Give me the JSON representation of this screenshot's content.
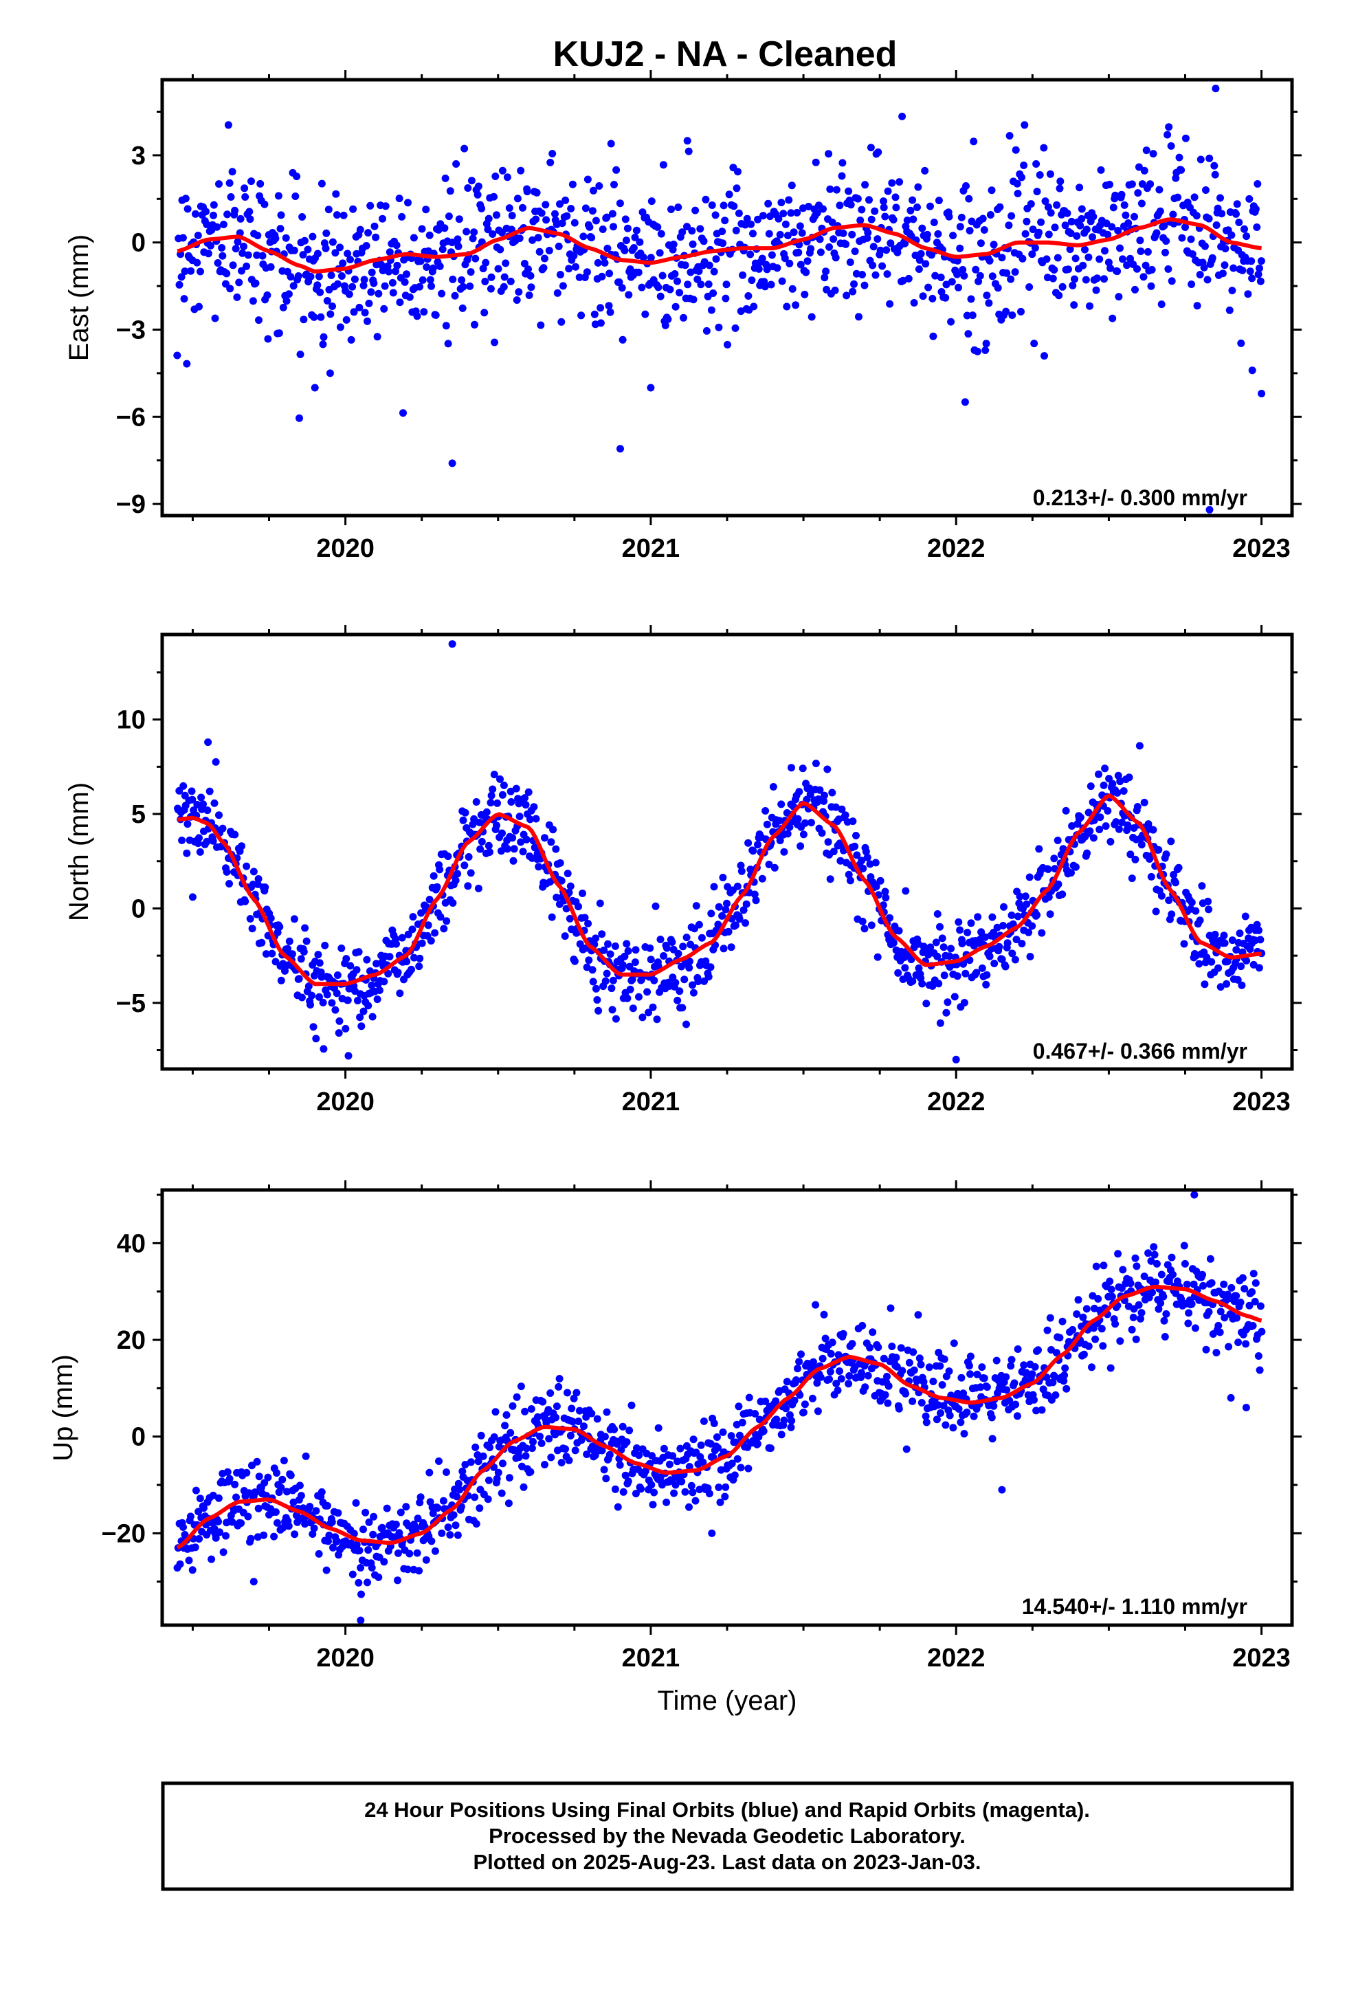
{
  "title": "KUJ2  - NA - Cleaned",
  "xlabel": "Time (year)",
  "footer": {
    "line1": "24 Hour Positions Using Final Orbits (blue) and Rapid Orbits (magenta).",
    "line2": "Processed by the Nevada Geodetic Laboratory.",
    "line3": "Plotted on 2025-Aug-23. Last data on 2023-Jan-03."
  },
  "colors": {
    "data": "#0000ff",
    "fit": "#ff0000",
    "frame": "#000000"
  },
  "chart_data": [
    {
      "type": "scatter",
      "panel": "East",
      "ylabel": "East (mm)",
      "rate_label": "0.213+/- 0.300 mm/yr",
      "xlim": [
        2019.4,
        2023.1
      ],
      "ylim": [
        -9.4,
        5.6
      ],
      "xticks": [
        "2020",
        "2021",
        "2022",
        "2023"
      ],
      "xtick_values": [
        2020,
        2021,
        2022,
        2023
      ],
      "yticks": [
        "3",
        "0",
        "−3",
        "−6",
        "−9"
      ],
      "ytick_values": [
        3,
        0,
        -3,
        -6,
        -9
      ],
      "series": [
        {
          "kind": "fit-line",
          "x": [
            2019.45,
            2019.55,
            2019.65,
            2019.75,
            2019.85,
            2019.9,
            2020.0,
            2020.1,
            2020.2,
            2020.3,
            2020.4,
            2020.5,
            2020.6,
            2020.7,
            2020.8,
            2020.9,
            2021.0,
            2021.1,
            2021.2,
            2021.3,
            2021.4,
            2021.5,
            2021.6,
            2021.7,
            2021.8,
            2021.9,
            2022.0,
            2022.1,
            2022.2,
            2022.3,
            2022.4,
            2022.5,
            2022.6,
            2022.7,
            2022.8,
            2022.9,
            2023.0
          ],
          "y": [
            -0.3,
            0.1,
            0.2,
            -0.3,
            -0.8,
            -1.0,
            -0.9,
            -0.6,
            -0.4,
            -0.5,
            -0.4,
            0.1,
            0.5,
            0.3,
            -0.2,
            -0.6,
            -0.7,
            -0.5,
            -0.3,
            -0.2,
            -0.2,
            0.1,
            0.5,
            0.6,
            0.3,
            -0.2,
            -0.5,
            -0.4,
            0.0,
            0.0,
            -0.1,
            0.1,
            0.5,
            0.8,
            0.6,
            0.0,
            -0.2
          ]
        },
        {
          "kind": "outliers",
          "x": [
            2019.9,
            2019.95,
            2020.35,
            2020.87,
            2020.9,
            2021.0,
            2021.12,
            2022.85,
            2022.83,
            2022.97,
            2023.0
          ],
          "y": [
            -5.0,
            -4.5,
            -7.6,
            3.4,
            -7.1,
            -5.0,
            3.5,
            5.3,
            -9.2,
            -4.4,
            -5.2
          ]
        }
      ]
    },
    {
      "type": "scatter",
      "panel": "North",
      "ylabel": "North (mm)",
      "rate_label": "0.467+/- 0.366 mm/yr",
      "xlim": [
        2019.4,
        2023.1
      ],
      "ylim": [
        -8.5,
        14.5
      ],
      "xticks": [
        "2020",
        "2021",
        "2022",
        "2023"
      ],
      "xtick_values": [
        2020,
        2021,
        2022,
        2023
      ],
      "yticks": [
        "10",
        "5",
        "0",
        "−5"
      ],
      "ytick_values": [
        10,
        5,
        0,
        -5
      ],
      "series": [
        {
          "kind": "fit-line",
          "x": [
            2019.45,
            2019.5,
            2019.55,
            2019.6,
            2019.7,
            2019.8,
            2019.9,
            2020.0,
            2020.1,
            2020.2,
            2020.3,
            2020.4,
            2020.5,
            2020.6,
            2020.7,
            2020.8,
            2020.9,
            2021.0,
            2021.1,
            2021.2,
            2021.3,
            2021.4,
            2021.5,
            2021.6,
            2021.7,
            2021.8,
            2021.9,
            2022.0,
            2022.1,
            2022.2,
            2022.3,
            2022.4,
            2022.5,
            2022.6,
            2022.7,
            2022.8,
            2022.9,
            2023.0
          ],
          "y": [
            4.7,
            4.8,
            4.5,
            3.5,
            0.5,
            -2.5,
            -4.0,
            -4.0,
            -3.5,
            -2.5,
            0.5,
            3.5,
            5.0,
            4.3,
            1.2,
            -2.0,
            -3.5,
            -3.5,
            -2.7,
            -1.8,
            0.7,
            3.8,
            5.6,
            4.4,
            1.5,
            -1.5,
            -3.0,
            -2.8,
            -2.0,
            -1.0,
            1.0,
            4.0,
            6.0,
            4.5,
            1.0,
            -1.8,
            -2.6,
            -2.4
          ]
        },
        {
          "kind": "outliers",
          "x": [
            2020.35,
            2019.55,
            2019.5,
            2022.0,
            2020.01
          ],
          "y": [
            14.0,
            8.8,
            0.6,
            -8.0,
            -7.8
          ]
        }
      ]
    },
    {
      "type": "scatter",
      "panel": "Up",
      "ylabel": "Up (mm)",
      "rate_label": "14.540+/- 1.110 mm/yr",
      "xlim": [
        2019.4,
        2023.1
      ],
      "ylim": [
        -39,
        51
      ],
      "xticks": [
        "2020",
        "2021",
        "2022",
        "2023"
      ],
      "xtick_values": [
        2020,
        2021,
        2022,
        2023
      ],
      "yticks": [
        "40",
        "20",
        "0",
        "−20"
      ],
      "ytick_values": [
        40,
        20,
        0,
        -20
      ],
      "series": [
        {
          "kind": "fit-line",
          "x": [
            2019.45,
            2019.55,
            2019.65,
            2019.75,
            2019.85,
            2019.95,
            2020.05,
            2020.15,
            2020.25,
            2020.35,
            2020.45,
            2020.55,
            2020.65,
            2020.75,
            2020.85,
            2020.95,
            2021.05,
            2021.15,
            2021.25,
            2021.35,
            2021.45,
            2021.55,
            2021.65,
            2021.75,
            2021.85,
            2021.95,
            2022.05,
            2022.15,
            2022.25,
            2022.35,
            2022.45,
            2022.55,
            2022.65,
            2022.75,
            2022.85,
            2022.95,
            2023.0
          ],
          "y": [
            -23,
            -17,
            -13.5,
            -13,
            -15.5,
            -19,
            -21.5,
            -22,
            -20,
            -15,
            -7,
            -1,
            2,
            1.5,
            -2,
            -5.5,
            -7.5,
            -7,
            -4,
            2,
            8,
            14,
            16.5,
            15,
            10.5,
            8,
            7,
            8,
            11,
            17,
            24,
            29,
            31,
            30.5,
            28,
            25,
            24
          ]
        },
        {
          "kind": "outliers",
          "x": [
            2020.05,
            2022.78,
            2022.9,
            2022.95,
            2021.2,
            2022.15,
            2019.7
          ],
          "y": [
            -38,
            50,
            8,
            6,
            -20,
            -11,
            -30
          ]
        }
      ]
    }
  ]
}
